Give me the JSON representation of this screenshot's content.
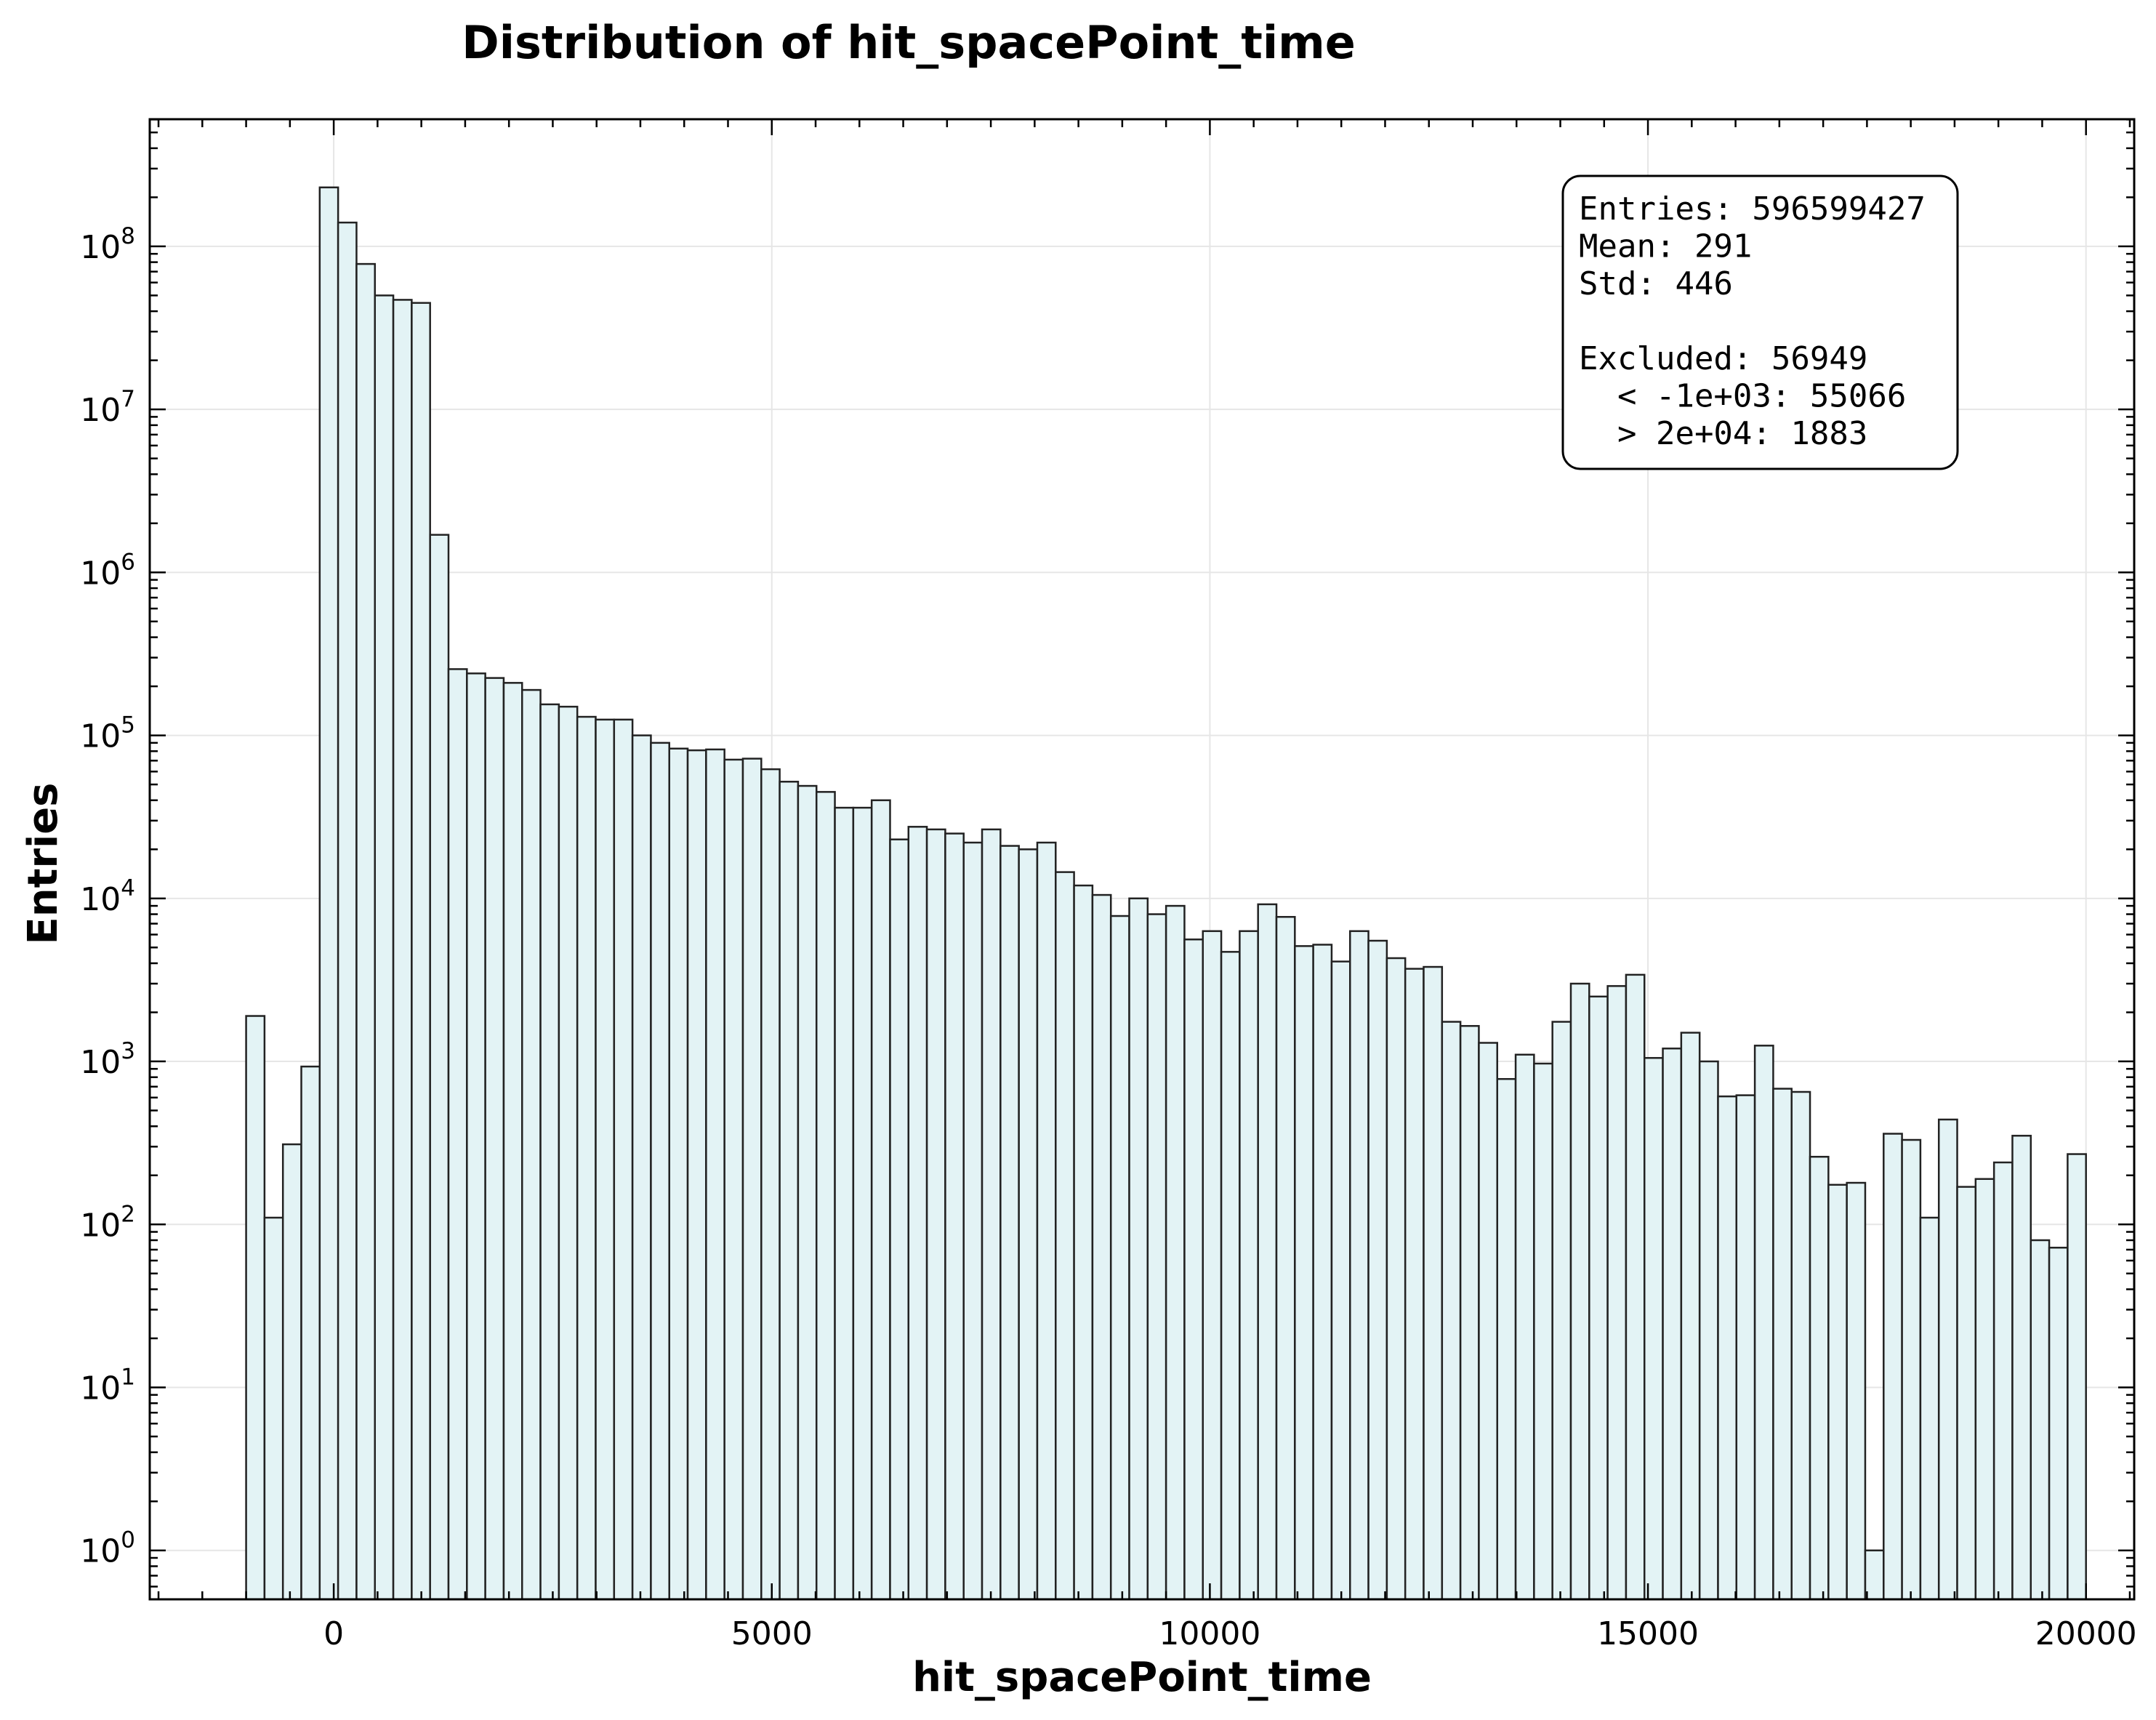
{
  "chart_data": {
    "type": "bar",
    "title": "Distribution of hit_spacePoint_time",
    "xlabel": "hit_spacePoint_time",
    "ylabel": "Entries",
    "xlim": [
      -2100,
      20550
    ],
    "ylim_log10": [
      -0.3,
      8.78
    ],
    "y_scale": "log",
    "grid": true,
    "bin_start": -1000,
    "bin_width": 210,
    "x_ticks": [
      {
        "value": 0,
        "label": "0"
      },
      {
        "value": 5000,
        "label": "5000"
      },
      {
        "value": 10000,
        "label": "10000"
      },
      {
        "value": 15000,
        "label": "15000"
      },
      {
        "value": 20000,
        "label": "20000"
      }
    ],
    "y_ticks": [
      {
        "exp": 0,
        "base": "10",
        "power": "0"
      },
      {
        "exp": 1,
        "base": "10",
        "power": "1"
      },
      {
        "exp": 2,
        "base": "10",
        "power": "2"
      },
      {
        "exp": 3,
        "base": "10",
        "power": "3"
      },
      {
        "exp": 4,
        "base": "10",
        "power": "4"
      },
      {
        "exp": 5,
        "base": "10",
        "power": "5"
      },
      {
        "exp": 6,
        "base": "10",
        "power": "6"
      },
      {
        "exp": 7,
        "base": "10",
        "power": "7"
      },
      {
        "exp": 8,
        "base": "10",
        "power": "8"
      }
    ],
    "values": [
      1900,
      110,
      310,
      930,
      230000000,
      140000000,
      78000000,
      50000000,
      47000000,
      45000000,
      1700000,
      255000,
      240000,
      225000,
      210000,
      190000,
      155000,
      150000,
      130000,
      125000,
      125000,
      100000,
      90000,
      83000,
      81000,
      82000,
      71000,
      72000,
      62000,
      52000,
      49000,
      45000,
      36000,
      36000,
      40000,
      23000,
      27500,
      26500,
      25000,
      22000,
      26500,
      21000,
      20000,
      22000,
      14500,
      12000,
      10500,
      7800,
      10000,
      8000,
      9000,
      5600,
      6300,
      4700,
      6300,
      9200,
      7700,
      5100,
      5200,
      4100,
      6300,
      5500,
      4300,
      3700,
      3800,
      1750,
      1650,
      1300,
      780,
      1100,
      970,
      1750,
      3000,
      2500,
      2900,
      3400,
      1050,
      1200,
      1500,
      1000,
      610,
      620,
      1250,
      680,
      650,
      260,
      175,
      180,
      1,
      360,
      330,
      110,
      440,
      170,
      190,
      240,
      350,
      80,
      72,
      270
    ],
    "fill_color": "#e3f3f5",
    "edge_color": "#222222",
    "stats_box": {
      "position": "top-right",
      "lines": [
        "Entries: 596599427",
        "Mean: 291",
        "Std: 446",
        "",
        "Excluded: 56949",
        "  < -1e+03: 55066",
        "  > 2e+04: 1883"
      ]
    }
  }
}
